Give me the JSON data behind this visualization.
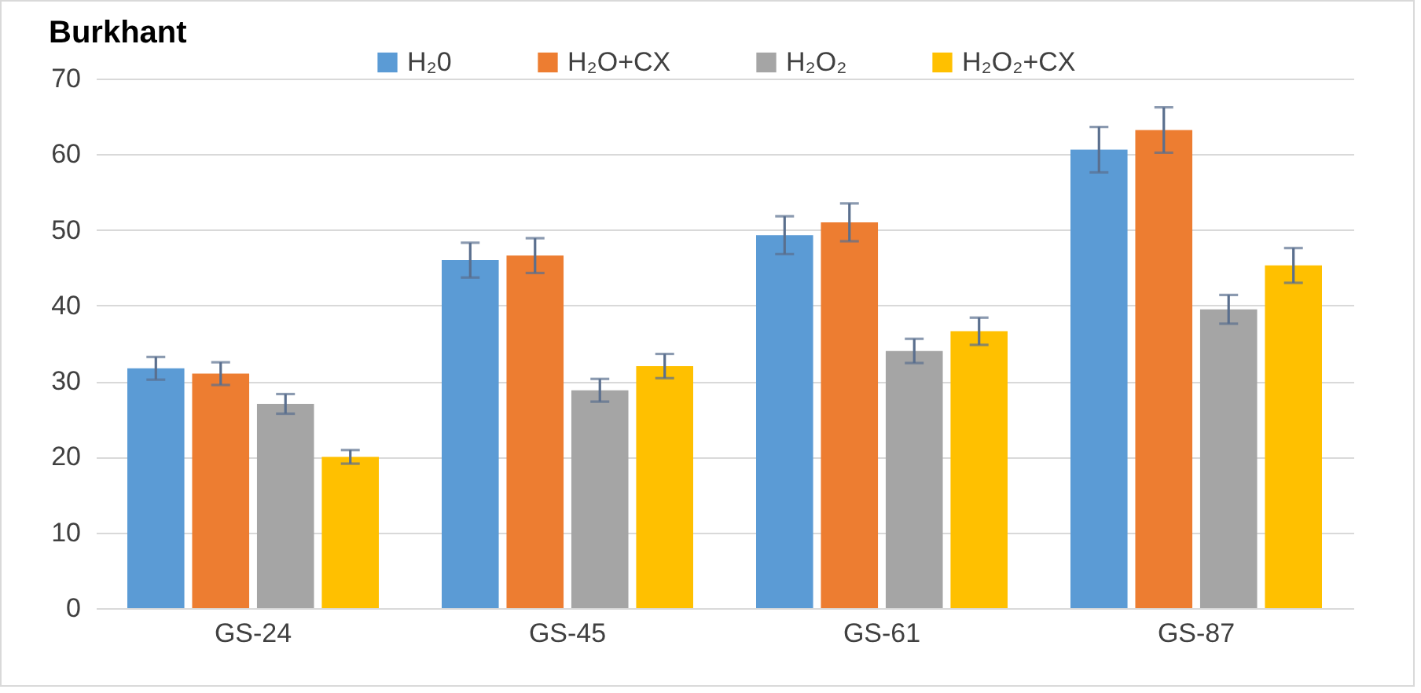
{
  "chart_data": {
    "type": "bar",
    "title": "Burkhant",
    "categories": [
      "GS-24",
      "GS-45",
      "GS-61",
      "GS-87"
    ],
    "series": [
      {
        "name": "H₂0",
        "color": "#5b9bd5",
        "values": [
          31.7,
          46,
          49.3,
          60.6
        ],
        "errors": [
          1.5,
          2.3,
          2.5,
          3
        ]
      },
      {
        "name": "H₂O+CX",
        "color": "#ed7d31",
        "values": [
          31,
          46.6,
          51,
          63.2
        ],
        "errors": [
          1.5,
          2.3,
          2.5,
          3
        ]
      },
      {
        "name": "H₂O₂",
        "color": "#a5a5a5",
        "values": [
          27,
          28.8,
          34,
          39.5
        ],
        "errors": [
          1.3,
          1.5,
          1.6,
          1.9
        ]
      },
      {
        "name": "H₂O₂+CX",
        "color": "#ffc000",
        "values": [
          20,
          32,
          36.6,
          45.3
        ],
        "errors": [
          0.9,
          1.6,
          1.8,
          2.3
        ]
      }
    ],
    "ylim": [
      0,
      70
    ],
    "yticks": [
      0,
      10,
      20,
      30,
      40,
      50,
      60,
      70
    ],
    "grid": "y",
    "legend": "top"
  }
}
